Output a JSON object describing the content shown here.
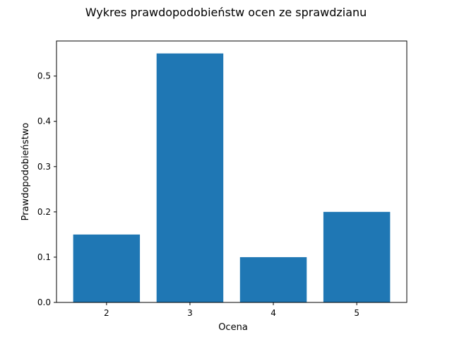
{
  "chart_data": {
    "type": "bar",
    "title": "Wykres prawdopodobieństw ocen ze sprawdzianu",
    "xlabel": "Ocena",
    "ylabel": "Prawdopodobieństwo",
    "categories": [
      "2",
      "3",
      "4",
      "5"
    ],
    "values": [
      0.15,
      0.55,
      0.1,
      0.2
    ],
    "ylim": [
      0,
      0.5775
    ],
    "yticks": [
      "0.0",
      "0.1",
      "0.2",
      "0.3",
      "0.4",
      "0.5"
    ],
    "grid": false,
    "bar_color": "#1f77b4"
  }
}
